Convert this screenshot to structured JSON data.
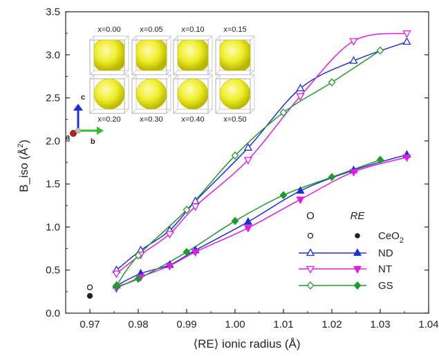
{
  "chart_data": {
    "type": "line",
    "xlabel": "⟨RE⟩ ionic radius (Å)",
    "ylabel": "B_iso (Å",
    "ylabel_sup": "2",
    "ylabel_close": ")",
    "xlim": [
      0.965,
      1.04
    ],
    "ylim": [
      0.0,
      3.5
    ],
    "xticks": [
      "0.97",
      "0.98",
      "0.99",
      "1.00",
      "1.01",
      "1.02",
      "1.03",
      "1.04"
    ],
    "yticks": [
      "0.0",
      "0.5",
      "1.0",
      "1.5",
      "2.0",
      "2.5",
      "3.0",
      "3.5"
    ],
    "legend": {
      "col_O": "O",
      "col_RE": "RE",
      "entries": [
        {
          "label": "CeO",
          "sub": "2",
          "color": "#222222",
          "marker": "circle"
        },
        {
          "label": "ND",
          "color": "#1f2fd6",
          "marker": "triangle-up"
        },
        {
          "label": "NT",
          "color": "#e31ce3",
          "marker": "triangle-down"
        },
        {
          "label": "GS",
          "color": "#1f9a2b",
          "marker": "diamond"
        }
      ]
    },
    "ceo2": {
      "O": [
        0.97,
        0.3
      ],
      "RE": [
        0.97,
        0.2
      ]
    },
    "series": [
      {
        "name": "ND",
        "site": "O",
        "color": "#1f2fd6",
        "marker": "triangle-up",
        "x": [
          0.9755,
          0.9805,
          0.9865,
          0.9918,
          1.0027,
          1.0135,
          1.0245,
          1.0355
        ],
        "y": [
          0.5,
          0.73,
          0.96,
          1.3,
          1.92,
          2.61,
          2.93,
          3.15
        ]
      },
      {
        "name": "ND",
        "site": "RE",
        "color": "#1f2fd6",
        "marker": "triangle-up",
        "x": [
          0.9755,
          0.9805,
          0.9865,
          0.9918,
          1.0027,
          1.0135,
          1.0245,
          1.0355
        ],
        "y": [
          0.32,
          0.46,
          0.56,
          0.73,
          1.06,
          1.42,
          1.66,
          1.84
        ]
      },
      {
        "name": "NT",
        "site": "O",
        "color": "#e31ce3",
        "marker": "triangle-down",
        "x": [
          0.9755,
          0.9805,
          0.9865,
          0.9918,
          1.0027,
          1.0135,
          1.0245,
          1.0355
        ],
        "y": [
          0.46,
          0.68,
          0.92,
          1.24,
          1.78,
          2.52,
          3.16,
          3.25
        ]
      },
      {
        "name": "NT",
        "site": "RE",
        "color": "#e31ce3",
        "marker": "triangle-down",
        "x": [
          0.9755,
          0.9805,
          0.9865,
          0.9918,
          1.0027,
          1.0135,
          1.0245,
          1.0355
        ],
        "y": [
          0.29,
          0.42,
          0.55,
          0.71,
          0.99,
          1.32,
          1.64,
          1.81
        ]
      },
      {
        "name": "GS",
        "site": "O",
        "color": "#1f9a2b",
        "marker": "diamond",
        "x": [
          0.9755,
          0.98,
          0.99,
          1.0,
          1.01,
          1.02,
          1.03
        ],
        "y": [
          0.32,
          0.67,
          1.2,
          1.83,
          2.33,
          2.68,
          3.05
        ]
      },
      {
        "name": "GS",
        "site": "RE",
        "color": "#1f9a2b",
        "marker": "diamond",
        "x": [
          0.9755,
          0.98,
          0.99,
          1.0,
          1.01,
          1.02,
          1.03
        ],
        "y": [
          0.31,
          0.4,
          0.71,
          1.07,
          1.37,
          1.58,
          1.78
        ]
      }
    ],
    "inset": {
      "top_labels": [
        "x=0.00",
        "x=0.05",
        "x=0.10",
        "x=0.15"
      ],
      "bottom_labels": [
        "x=0.20",
        "x=0.30",
        "x=0.40",
        "x=0.50"
      ],
      "axis_labels": [
        "a",
        "b",
        "c"
      ]
    }
  }
}
